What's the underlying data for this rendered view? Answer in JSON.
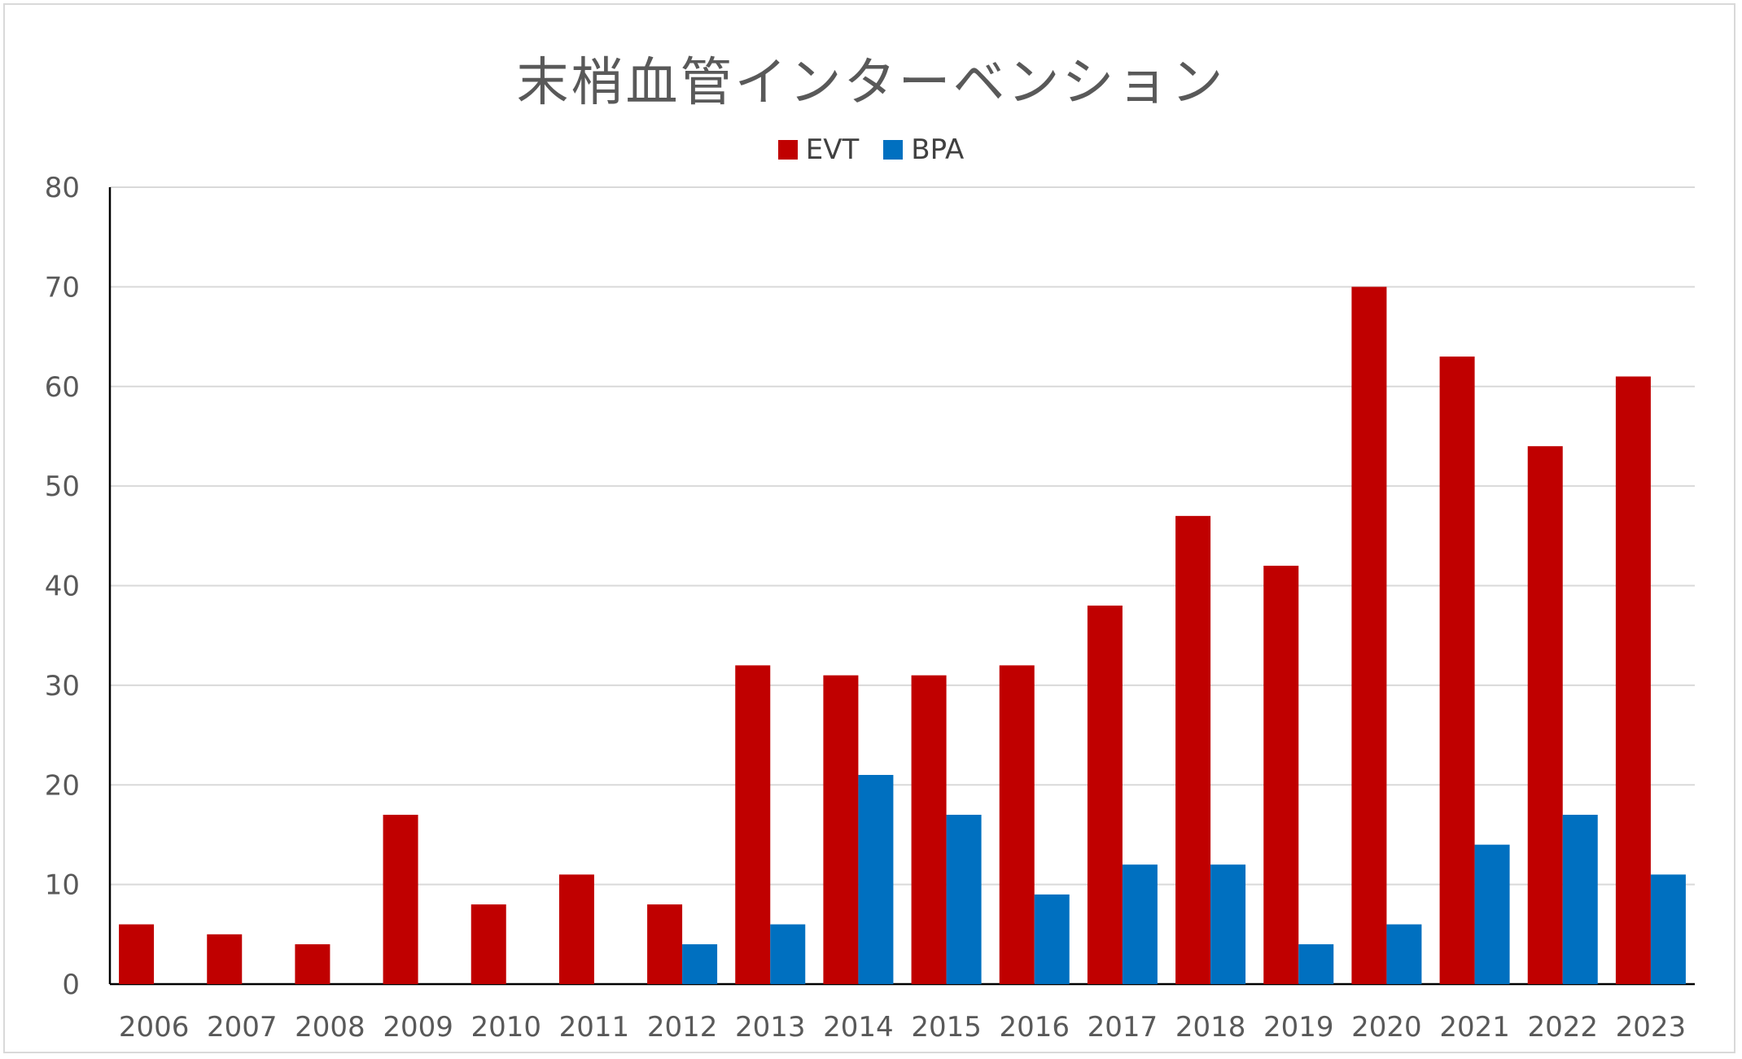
{
  "chart_data": {
    "type": "bar",
    "title": "末梢血管インターベンション",
    "xlabel": "",
    "ylabel": "",
    "categories": [
      "2006",
      "2007",
      "2008",
      "2009",
      "2010",
      "2011",
      "2012",
      "2013",
      "2014",
      "2015",
      "2016",
      "2017",
      "2018",
      "2019",
      "2020",
      "2021",
      "2022",
      "2023"
    ],
    "series": [
      {
        "name": "EVT",
        "color": "#c00000",
        "values": [
          6,
          5,
          4,
          17,
          8,
          11,
          8,
          32,
          31,
          31,
          32,
          38,
          47,
          42,
          70,
          63,
          54,
          61
        ]
      },
      {
        "name": "BPA",
        "color": "#0070c0",
        "values": [
          0,
          0,
          0,
          0,
          0,
          0,
          4,
          6,
          21,
          17,
          9,
          12,
          12,
          4,
          6,
          14,
          17,
          11
        ]
      }
    ],
    "ylim": [
      0,
      80
    ],
    "yticks": [
      0,
      10,
      20,
      30,
      40,
      50,
      60,
      70,
      80
    ],
    "grid": true,
    "legend_position": "top"
  }
}
